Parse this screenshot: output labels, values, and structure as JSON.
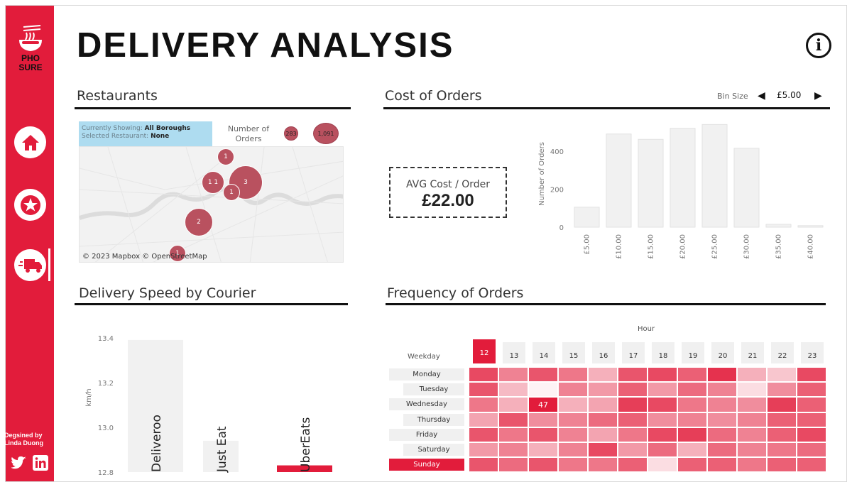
{
  "app": {
    "title": "DELIVERY ANALYSIS"
  },
  "sidebar": {
    "logo_line1": "PHO",
    "logo_line2": "SURE",
    "nav": [
      {
        "name": "home",
        "icon": "home-icon"
      },
      {
        "name": "favorites",
        "icon": "star-icon"
      },
      {
        "name": "delivery",
        "icon": "delivery-truck-icon",
        "active": true
      }
    ],
    "designed_by_line1": "Degsined by",
    "designed_by_line2": "Linda Duong",
    "social": [
      "twitter-icon",
      "linkedin-icon"
    ]
  },
  "restaurants": {
    "title": "Restaurants",
    "currently_showing_label": "Currently Showing:",
    "currently_showing_value": "All Boroughs",
    "selected_label": "Selected Restaurant:",
    "selected_value": "None",
    "legend_title_line1": "Number of",
    "legend_title_line2": "Orders",
    "legend_min": "283",
    "legend_max": "1,091",
    "bubble_labels": [
      "1",
      "1 1",
      "3",
      "1",
      "2",
      "1"
    ],
    "attribution": "© 2023 Mapbox © OpenStreetMap"
  },
  "cost": {
    "title": "Cost of Orders",
    "bin_label": "Bin Size",
    "bin_value": "£5.00",
    "avg_label": "AVG Cost / Order",
    "avg_value": "£22.00"
  },
  "speed": {
    "title": "Delivery Speed by Courier"
  },
  "frequency": {
    "title": "Frequency of Orders",
    "hour_label": "Hour",
    "weekday_label": "Weekday",
    "hours": [
      "12",
      "13",
      "14",
      "15",
      "16",
      "17",
      "18",
      "19",
      "20",
      "21",
      "22",
      "23"
    ],
    "days": [
      "Monday",
      "Tuesday",
      "Wednesday",
      "Thursday",
      "Friday",
      "Saturday",
      "Sunday"
    ],
    "selected_hour": "12",
    "selected_day": "Sunday",
    "highlight_label": "47",
    "intensity": [
      [
        0.8,
        0.55,
        0.75,
        0.6,
        0.35,
        0.75,
        0.8,
        0.7,
        0.9,
        0.35,
        0.25,
        0.8
      ],
      [
        0.75,
        0.3,
        0.05,
        0.55,
        0.45,
        0.7,
        0.45,
        0.65,
        0.55,
        0.15,
        0.5,
        0.7
      ],
      [
        0.6,
        0.35,
        1.0,
        0.35,
        0.4,
        0.85,
        0.8,
        0.6,
        0.55,
        0.5,
        0.85,
        0.7
      ],
      [
        0.4,
        0.75,
        0.5,
        0.55,
        0.65,
        0.7,
        0.5,
        0.55,
        0.5,
        0.55,
        0.7,
        0.7
      ],
      [
        0.75,
        0.6,
        0.75,
        0.55,
        0.4,
        0.6,
        0.8,
        0.85,
        0.65,
        0.55,
        0.7,
        0.8
      ],
      [
        0.45,
        0.55,
        0.35,
        0.55,
        0.8,
        0.45,
        0.65,
        0.35,
        0.65,
        0.55,
        0.6,
        0.65
      ],
      [
        0.75,
        0.65,
        0.75,
        0.6,
        0.6,
        0.7,
        0.15,
        0.7,
        0.7,
        0.6,
        0.7,
        0.7
      ]
    ],
    "base_color": "#e21c3b"
  },
  "chart_data": [
    {
      "type": "bar",
      "name": "cost-of-orders",
      "categories": [
        "£5.00",
        "£10.00",
        "£15.00",
        "£20.00",
        "£25.00",
        "£30.00",
        "£35.00",
        "£40.00"
      ],
      "values": [
        105,
        490,
        462,
        520,
        540,
        415,
        15,
        8
      ],
      "ylabel": "Number of Orders",
      "yticks": [
        0,
        200,
        400
      ],
      "ylim": [
        0,
        560
      ],
      "grid": false
    },
    {
      "type": "bar",
      "name": "delivery-speed",
      "categories": [
        "Deliveroo",
        "Just Eat",
        "UberEats"
      ],
      "values": [
        13.39,
        12.94,
        12.83
      ],
      "ylabel": "km/h",
      "yticks": [
        "13.4",
        "13.2",
        "13.0",
        "12.8"
      ],
      "ylim": [
        12.8,
        13.45
      ],
      "highlight_color": "#e21c3b",
      "highlight_index": 2,
      "grid": false
    }
  ]
}
